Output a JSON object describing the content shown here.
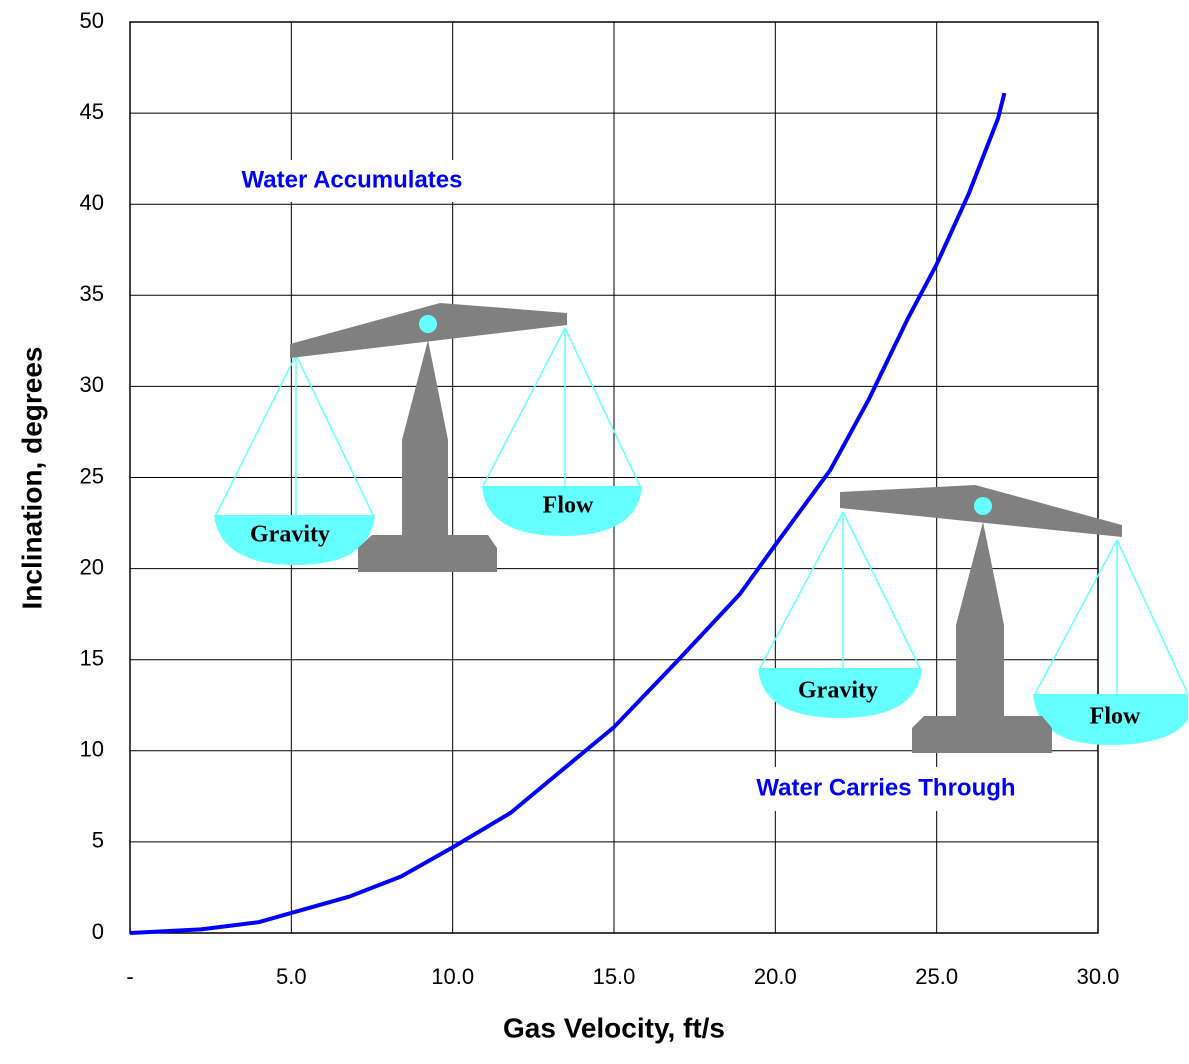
{
  "chart_data": {
    "type": "line",
    "xlabel": "Gas Velocity, ft/s",
    "ylabel": "Inclination, degrees",
    "x": [
      0,
      2.2,
      4,
      5,
      6.8,
      8.4,
      10,
      11.8,
      13.5,
      15,
      17,
      18.9,
      20,
      21.7,
      22.9,
      24.1,
      25,
      26,
      26.9,
      27.1
    ],
    "values": [
      0,
      0.2,
      0.6,
      1.1,
      2.0,
      3.1,
      4.7,
      6.6,
      9.1,
      11.3,
      15,
      18.6,
      21.3,
      25.4,
      29.3,
      33.7,
      36.7,
      40.6,
      44.7,
      46.1
    ],
    "color": "#0000ff",
    "xlim": [
      0,
      30
    ],
    "ylim": [
      0,
      50
    ],
    "xticks": [
      {
        "value": 0,
        "label": "-"
      },
      {
        "value": 5,
        "label": "5.0"
      },
      {
        "value": 10,
        "label": "10.0"
      },
      {
        "value": 15,
        "label": "15.0"
      },
      {
        "value": 20,
        "label": "20.0"
      },
      {
        "value": 25,
        "label": "25.0"
      },
      {
        "value": 30,
        "label": "30.0"
      }
    ],
    "yticks": [
      0,
      5,
      10,
      15,
      20,
      25,
      30,
      35,
      40,
      45,
      50
    ],
    "grid": true,
    "annotations": [
      "Water Accumulates",
      "Water Carries Through",
      "Gravity",
      "Flow",
      "Gravity",
      "Flow"
    ]
  }
}
